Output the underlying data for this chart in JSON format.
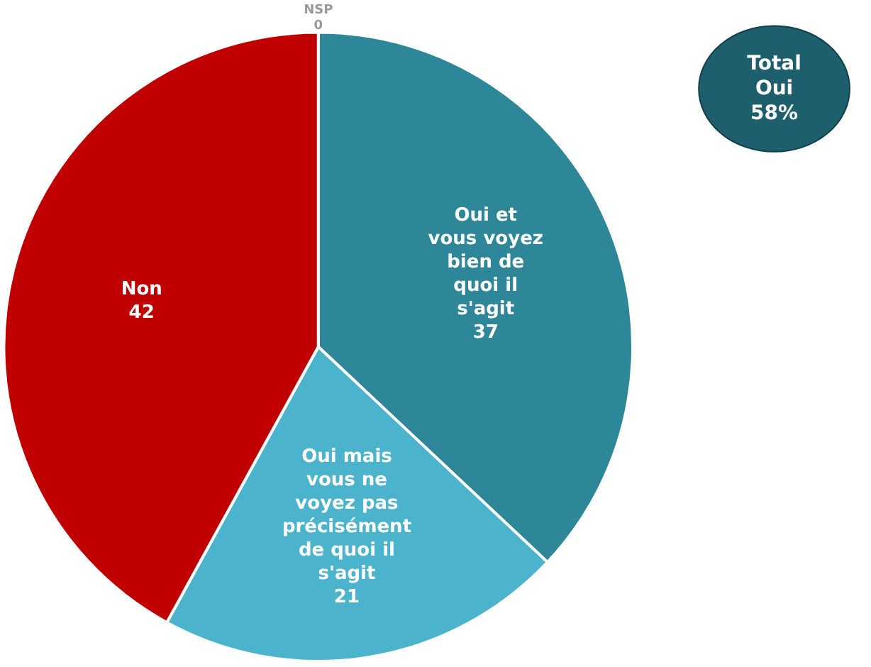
{
  "chart_data": {
    "type": "pie",
    "categories": [
      "NSP",
      "Oui et vous voyez bien de quoi il s'agit",
      "Oui mais vous ne voyez pas précisément de quoi il s'agit",
      "Non"
    ],
    "values": [
      0,
      37,
      21,
      42
    ],
    "colors": [
      "#cccccc",
      "#2e8799",
      "#4bb3cc",
      "#c00000"
    ],
    "value_labels": [
      "0",
      "37",
      "21",
      "42"
    ],
    "annotations": [
      "Total Oui 58%"
    ]
  }
}
